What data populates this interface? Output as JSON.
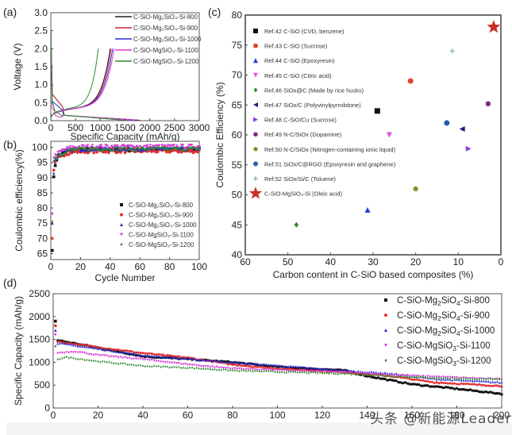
{
  "watermark": "头条 @新能源Leader",
  "chart_data": [
    {
      "panel": "(a)",
      "type": "line",
      "xlabel": "Specific Capacity (mAh/g)",
      "ylabel": "Voltage (V)",
      "xlim": [
        0,
        3000
      ],
      "ylim": [
        0,
        3.0
      ],
      "xticks": [
        "0",
        "500",
        "1000",
        "1500",
        "2000",
        "2500",
        "3000"
      ],
      "yticks": [
        "0.0",
        "0.5",
        "1.0",
        "1.5",
        "2.0",
        "2.5",
        "3.0"
      ],
      "legend_position": "top-right",
      "series": [
        {
          "name": "C-SiO-Mg2SiO4-Si-800",
          "color": "#222222",
          "discharge_end": 1800,
          "charge_end": 1200,
          "plateau": 0.7
        },
        {
          "name": "C-SiO-Mg2SiO4-Si-900",
          "color": "#d62728",
          "discharge_end": 1800,
          "charge_end": 1220,
          "plateau": 0.7
        },
        {
          "name": "C-SiO-Mg2SiO4-Si-1000",
          "color": "#2b2bd6",
          "discharge_end": 1750,
          "charge_end": 1250,
          "plateau": 0.5
        },
        {
          "name": "C-SiO-MgSiO3-Si-1100",
          "color": "#d63ad6",
          "discharge_end": 1700,
          "charge_end": 1280,
          "plateau": 0.3
        },
        {
          "name": "C-SiO-MgSiO3-Si-1200",
          "color": "#2e8b2e",
          "discharge_end": 1500,
          "charge_end": 960,
          "plateau": 0.45
        }
      ],
      "legend_labels": [
        "C-SiO-Mg₂SiO₄-Si-800",
        "C-SiO-Mg₂SiO₄-Si-900",
        "C-SiO-Mg₂SiO₄-Si-1000",
        "C-SiO-MgSiO₃-Si-1100",
        "C-SiO-MgSiO₃-Si-1200"
      ]
    },
    {
      "panel": "(b)",
      "type": "scatter",
      "xlabel": "Cycle Number",
      "ylabel": "Coulombic efficiency(%)",
      "xlim": [
        0,
        100
      ],
      "ylim": [
        63,
        102
      ],
      "xticks": [
        "0",
        "20",
        "40",
        "60",
        "80",
        "100"
      ],
      "yticks": [
        "65",
        "70",
        "75",
        "80",
        "85",
        "90",
        "95",
        "100"
      ],
      "legend_position": "bottom-right",
      "series": [
        {
          "name": "C-SiO-Mg2SiO4-Si-800",
          "label": "C-SiO-Mg₂SiO₄-Si-800",
          "color": "#111111",
          "marker": "square",
          "first": [
            66.0,
            90.3,
            94.0
          ],
          "plateau": 99.3
        },
        {
          "name": "C-SiO-Mg2SiO4-Si-900",
          "label": "C-SiO-Mg₂SiO₄-Si-900",
          "color": "#e03030",
          "marker": "circle",
          "first": [
            70.0,
            92.5,
            95.0
          ],
          "plateau": 98.8
        },
        {
          "name": "C-SiO-Mg2SiO4-Si-1000",
          "label": "C-SiO-Mg₂SiO₄-Si-1000",
          "color": "#2a2ad8",
          "marker": "triangle-up",
          "first": [
            75.0,
            91.5,
            96.0
          ],
          "plateau": 99.6
        },
        {
          "name": "C-SiO-MgSiO3-Si-1100",
          "label": "C-SiO-MgSiO₃-Si-1100",
          "color": "#d63ad6",
          "marker": "triangle-down",
          "first": [
            78.0,
            96.5,
            97.5
          ],
          "plateau": 100.2
        },
        {
          "name": "C-SiO-MgSiO3-Si-1200",
          "label": "C-SiO-MgSiO₃-Si-1200",
          "color": "#2e8b2e",
          "marker": "diamond",
          "first": [
            75.5,
            95.5,
            96.5
          ],
          "plateau": 99.5
        }
      ]
    },
    {
      "panel": "(c)",
      "type": "scatter",
      "xlabel": "Carbon content in C-SiO based composites (%)",
      "ylabel": "Coulombic Efficiency (%)",
      "xlim": [
        60,
        0
      ],
      "ylim": [
        40,
        80
      ],
      "xticks": [
        "60",
        "50",
        "40",
        "30",
        "20",
        "10",
        "0"
      ],
      "yticks": [
        "40",
        "45",
        "50",
        "55",
        "60",
        "65",
        "70",
        "75",
        "80"
      ],
      "legend_position": "top-left",
      "points": [
        {
          "label": "Ref.42 C-SiO (CVD, benzene)",
          "x": 29,
          "y": 64,
          "color": "#111111",
          "marker": "square"
        },
        {
          "label": "Ref.43 C-SiO (Sucrose)",
          "x": 21.2,
          "y": 69,
          "color": "#e0452b",
          "marker": "circle"
        },
        {
          "label": "Ref.44 C-SiO (Epoxyresin)",
          "x": 31.3,
          "y": 47.5,
          "color": "#1f3fd6",
          "marker": "triangle-up"
        },
        {
          "label": "Ref.45 C-SiO (Citric acid)",
          "x": 26.2,
          "y": 60,
          "color": "#e055e0",
          "marker": "triangle-down"
        },
        {
          "label": "Ref.46 SiOx@C  (Made by rice husks)",
          "x": 48,
          "y": 45,
          "color": "#2e8b2e",
          "marker": "diamond"
        },
        {
          "label": "Ref.47 SiOx/C  (Polyvinylpyrrolidone)",
          "x": 9.1,
          "y": 61,
          "color": "#14207a",
          "marker": "triangle-left"
        },
        {
          "label": "Ref.48 C-SiO/Cu (Sucrose)",
          "x": 7.6,
          "y": 57.7,
          "color": "#8a3ae8",
          "marker": "triangle-right"
        },
        {
          "label": "Ref.49 N-C/SiOx  (Dopamine)",
          "x": 3,
          "y": 65.2,
          "color": "#7a2a7a",
          "marker": "hexagon"
        },
        {
          "label": "Ref.50 N-C/SiOx  (Nitrogen-containing  ionic liquid)",
          "x": 20,
          "y": 51,
          "color": "#8a8a2a",
          "marker": "pentagon"
        },
        {
          "label": "Ref.51 SiOx/C@RGO  (Epoxyresin  and graphene)",
          "x": 12.7,
          "y": 62,
          "color": "#2a5aa8",
          "marker": "sphere"
        },
        {
          "label": "Ref.52 SiOx/Si/C (Toluene)",
          "x": 11.4,
          "y": 74,
          "color": "#5aa89a",
          "marker": "plus"
        },
        {
          "label": "C-SiO-MgSiO₃-Si (Oleic acid)",
          "x": 1.7,
          "y": 78,
          "color": "#c8322a",
          "marker": "star"
        }
      ]
    },
    {
      "panel": "(d)",
      "type": "scatter",
      "xlabel": "Cycle Number",
      "ylabel": "Specific Capacity (mAh/g)",
      "xlim": [
        0,
        200
      ],
      "ylim": [
        0,
        2500
      ],
      "xticks": [
        "0",
        "20",
        "40",
        "60",
        "80",
        "100",
        "120",
        "140",
        "160",
        "180",
        "200"
      ],
      "yticks": [
        "0",
        "500",
        "1000",
        "1500",
        "2000",
        "2500"
      ],
      "legend_position": "top-right",
      "series": [
        {
          "name": "C-SiO-Mg2SiO4-Si-800",
          "label_main": "C-SiO-Mg",
          "sub1": "2",
          "mid": "SiO",
          "sub2": "4",
          "tail": "-Si-800",
          "color": "#111111",
          "marker": "square",
          "first": 1900,
          "anchors": [
            [
              2,
              1480
            ],
            [
              20,
              1320
            ],
            [
              40,
              1130
            ],
            [
              60,
              1070
            ],
            [
              80,
              1000
            ],
            [
              100,
              900
            ],
            [
              130,
              820
            ],
            [
              140,
              700
            ],
            [
              160,
              520
            ],
            [
              180,
              420
            ],
            [
              200,
              310
            ]
          ]
        },
        {
          "name": "C-SiO-Mg2SiO4-Si-900",
          "label_main": "C-SiO-Mg",
          "sub1": "2",
          "mid": "SiO",
          "sub2": "4",
          "tail": "-Si-900",
          "color": "#e03030",
          "marker": "circle",
          "first": 1800,
          "anchors": [
            [
              2,
              1450
            ],
            [
              20,
              1330
            ],
            [
              40,
              1200
            ],
            [
              60,
              1100
            ],
            [
              80,
              950
            ],
            [
              100,
              860
            ],
            [
              130,
              780
            ],
            [
              150,
              700
            ],
            [
              170,
              560
            ],
            [
              200,
              480
            ]
          ]
        },
        {
          "name": "C-SiO-Mg2SiO4-Si-1000",
          "label_main": "C-SiO-Mg",
          "sub1": "2",
          "mid": "SiO",
          "sub2": "4",
          "tail": "-Si-1000",
          "color": "#2a2ad8",
          "marker": "triangle-up",
          "first": 1700,
          "anchors": [
            [
              2,
              1420
            ],
            [
              20,
              1300
            ],
            [
              40,
              1150
            ],
            [
              60,
              1080
            ],
            [
              80,
              1000
            ],
            [
              100,
              930
            ],
            [
              130,
              820
            ],
            [
              150,
              760
            ],
            [
              170,
              640
            ],
            [
              200,
              560
            ]
          ]
        },
        {
          "name": "C-SiO-MgSiO3-Si-1100",
          "label_main": "C-SiO-MgSiO",
          "sub1": "",
          "mid": "",
          "sub2": "3",
          "tail": "-Si-1100",
          "color": "#d63ad6",
          "marker": "triangle-down",
          "first": 1600,
          "anchors": [
            [
              2,
              1200
            ],
            [
              10,
              1230
            ],
            [
              20,
              1150
            ],
            [
              40,
              1060
            ],
            [
              60,
              950
            ],
            [
              70,
              900
            ],
            [
              80,
              860
            ],
            [
              100,
              820
            ],
            [
              130,
              780
            ],
            [
              150,
              720
            ],
            [
              170,
              680
            ],
            [
              200,
              620
            ]
          ]
        },
        {
          "name": "C-SiO-MgSiO3-Si-1200",
          "label_main": "C-SiO-MgSiO",
          "sub1": "",
          "mid": "",
          "sub2": "3",
          "tail": "-Si-1200",
          "color": "#2e8b2e",
          "marker": "diamond",
          "first": 1350,
          "anchors": [
            [
              2,
              1070
            ],
            [
              6,
              1110
            ],
            [
              20,
              1020
            ],
            [
              40,
              920
            ],
            [
              60,
              880
            ],
            [
              80,
              820
            ],
            [
              100,
              790
            ],
            [
              130,
              750
            ],
            [
              150,
              700
            ],
            [
              170,
              660
            ],
            [
              200,
              620
            ]
          ]
        }
      ]
    }
  ]
}
